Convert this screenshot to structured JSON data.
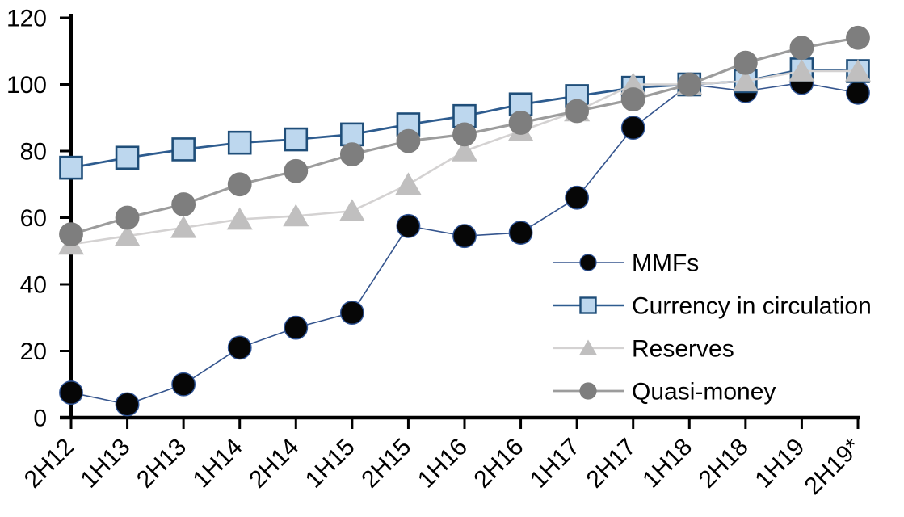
{
  "chart_data": {
    "type": "line",
    "title": "",
    "xlabel": "",
    "ylabel": "",
    "ylim": [
      0,
      120
    ],
    "y_ticks": [
      0,
      20,
      40,
      60,
      80,
      100,
      120
    ],
    "grid": false,
    "legend_position": "inside-right",
    "categories": [
      "2H12",
      "1H13",
      "2H13",
      "1H14",
      "2H14",
      "1H15",
      "2H15",
      "1H16",
      "2H16",
      "1H17",
      "2H17",
      "1H18",
      "2H18",
      "1H19",
      "2H19*"
    ],
    "series": [
      {
        "name": "MMFs",
        "marker": "circle",
        "marker_fill": "#060606",
        "marker_stroke": "#2F5496",
        "line_color": "#35558E",
        "line_width": 1.6,
        "values": [
          7.5,
          4,
          10,
          21,
          27,
          31.5,
          57.5,
          54.5,
          55.5,
          66,
          87,
          100,
          98,
          100.5,
          97.5
        ]
      },
      {
        "name": "Currency in circulation",
        "marker": "square",
        "marker_fill": "#BDD7EE",
        "marker_stroke": "#1F4E79",
        "line_color": "#2E5C8F",
        "line_width": 2.8,
        "values": [
          75,
          78,
          80.5,
          82.5,
          83.5,
          85,
          88,
          90.5,
          94,
          96.5,
          99,
          100,
          101,
          104.5,
          104
        ]
      },
      {
        "name": "Reserves",
        "marker": "triangle",
        "marker_fill": "#C0BFBF",
        "marker_stroke": "#C0BFBF",
        "line_color": "#D4D2D2",
        "line_width": 2.6,
        "values": [
          52,
          54.5,
          57,
          59.5,
          60.5,
          62,
          70,
          80,
          86,
          92,
          100,
          100,
          101,
          104,
          104
        ]
      },
      {
        "name": "Quasi-money",
        "marker": "circle",
        "marker_fill": "#7E7E7E",
        "marker_stroke": "#7E7E7E",
        "line_color": "#9C9C9C",
        "line_width": 3.2,
        "values": [
          55,
          60,
          64,
          70,
          74,
          79,
          83,
          85,
          88.5,
          92,
          95.5,
          100,
          106.5,
          111,
          114
        ]
      }
    ],
    "axis_color": "#000000",
    "tick_label_color": "#000000"
  }
}
